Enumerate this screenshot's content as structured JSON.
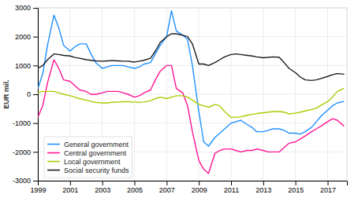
{
  "chart_data": {
    "type": "line",
    "ylabel": "EUR mil.",
    "x": [
      1999.0,
      1999.3,
      1999.6,
      2000.0,
      2000.3,
      2000.6,
      2001.0,
      2001.3,
      2001.6,
      2002.0,
      2002.3,
      2002.6,
      2003.0,
      2003.3,
      2003.6,
      2004.0,
      2004.3,
      2004.6,
      2005.0,
      2005.3,
      2005.6,
      2006.0,
      2006.3,
      2006.6,
      2007.0,
      2007.3,
      2007.6,
      2008.0,
      2008.3,
      2008.6,
      2009.0,
      2009.3,
      2009.6,
      2010.0,
      2010.3,
      2010.6,
      2011.0,
      2011.3,
      2011.6,
      2012.0,
      2012.3,
      2012.6,
      2013.0,
      2013.3,
      2013.6,
      2014.0,
      2014.3,
      2014.6,
      2015.0,
      2015.3,
      2015.6,
      2016.0,
      2016.3,
      2016.6,
      2017.0,
      2017.3,
      2017.6,
      2018.0
    ],
    "series": [
      {
        "name": "General government",
        "color": "#1e90ff",
        "values": [
          200,
          700,
          1700,
          2750,
          2300,
          1700,
          1500,
          1650,
          1750,
          1750,
          1400,
          1100,
          900,
          950,
          1000,
          1000,
          1000,
          950,
          900,
          950,
          1050,
          1100,
          1400,
          1700,
          2000,
          2900,
          2200,
          2050,
          1900,
          1000,
          -600,
          -1650,
          -1800,
          -1500,
          -1350,
          -1200,
          -1000,
          -950,
          -900,
          -1050,
          -1150,
          -1300,
          -1300,
          -1250,
          -1200,
          -1200,
          -1250,
          -1350,
          -1350,
          -1380,
          -1300,
          -1150,
          -950,
          -750,
          -550,
          -400,
          -300,
          -250
        ]
      },
      {
        "name": "Central government",
        "color": "#ff1493",
        "values": [
          -800,
          -400,
          400,
          1200,
          900,
          500,
          450,
          300,
          150,
          100,
          0,
          0,
          50,
          100,
          100,
          100,
          50,
          0,
          -100,
          -50,
          50,
          150,
          500,
          800,
          1000,
          1000,
          200,
          50,
          -400,
          -1300,
          -2300,
          -2600,
          -2750,
          -2050,
          -1950,
          -1900,
          -1900,
          -1950,
          -2000,
          -1950,
          -1950,
          -1900,
          -1950,
          -2000,
          -2000,
          -2000,
          -1850,
          -1700,
          -1650,
          -1550,
          -1450,
          -1300,
          -1200,
          -1100,
          -950,
          -850,
          -900,
          -1100
        ]
      },
      {
        "name": "Local government",
        "color": "#aacc00",
        "values": [
          50,
          100,
          100,
          100,
          50,
          0,
          -50,
          -100,
          -150,
          -200,
          -250,
          -280,
          -300,
          -300,
          -280,
          -270,
          -260,
          -260,
          -270,
          -280,
          -270,
          -220,
          -150,
          -100,
          -150,
          -100,
          -50,
          -50,
          -100,
          -200,
          -350,
          -400,
          -450,
          -350,
          -400,
          -600,
          -800,
          -800,
          -780,
          -730,
          -700,
          -670,
          -640,
          -620,
          -600,
          -600,
          -620,
          -680,
          -650,
          -620,
          -580,
          -530,
          -480,
          -380,
          -250,
          -100,
          100,
          200
        ]
      },
      {
        "name": "Social security funds",
        "color": "#1a1a1a",
        "values": [
          900,
          1000,
          1200,
          1400,
          1380,
          1350,
          1330,
          1280,
          1250,
          1200,
          1180,
          1160,
          1150,
          1160,
          1170,
          1160,
          1150,
          1150,
          1120,
          1150,
          1180,
          1250,
          1500,
          1800,
          2000,
          2100,
          2100,
          2050,
          2000,
          1750,
          1050,
          1050,
          1000,
          1100,
          1200,
          1300,
          1380,
          1400,
          1380,
          1350,
          1330,
          1300,
          1270,
          1280,
          1300,
          1280,
          1100,
          900,
          750,
          600,
          500,
          480,
          500,
          550,
          620,
          680,
          720,
          700
        ]
      }
    ],
    "xlim": [
      1999,
      2018.2
    ],
    "xticks": [
      1999,
      2001,
      2003,
      2005,
      2007,
      2009,
      2011,
      2013,
      2015,
      2017
    ],
    "ylim": [
      -3000,
      3000
    ],
    "yticks": [
      -3000,
      -2000,
      -1000,
      0,
      1000,
      2000,
      3000
    ],
    "grid": true,
    "legend": "lower left"
  }
}
